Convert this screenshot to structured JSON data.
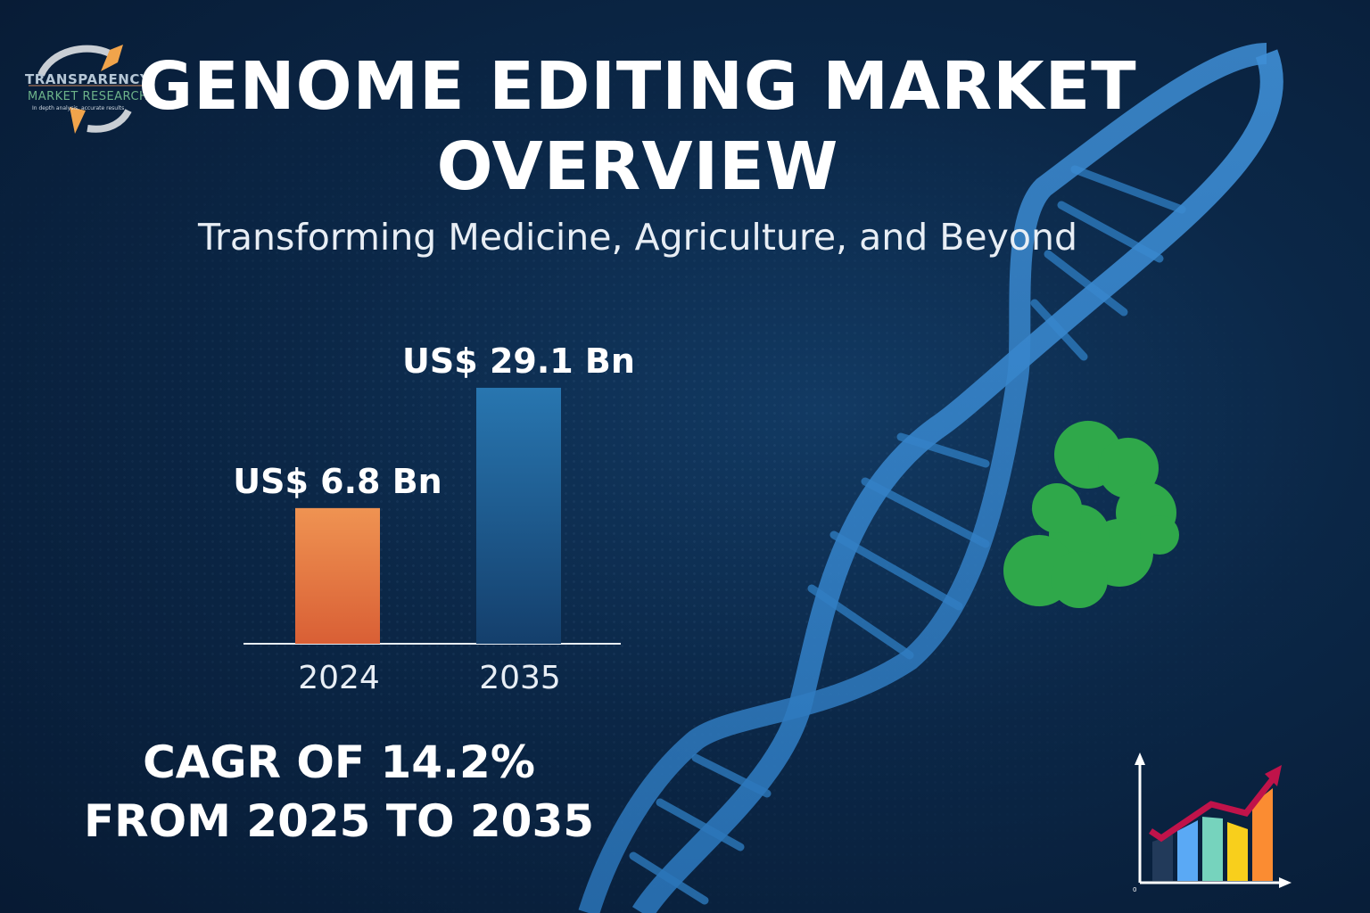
{
  "logo": {
    "name": "TRANSPARENCY",
    "line2": "MARKET RESEARCH",
    "tagline": "In depth analysis, accurate results"
  },
  "header": {
    "title": "GENOME EDITING MARKET OVERVIEW",
    "subtitle": "Transforming Medicine, Agriculture, and Beyond"
  },
  "chart_data": {
    "type": "bar",
    "categories": [
      "2024",
      "2035"
    ],
    "values": [
      6.8,
      29.1
    ],
    "data_labels": [
      "US$ 6.8 Bn",
      "US$ 29.1 Bn"
    ],
    "unit": "US$ Bn",
    "colors": [
      "#e8874a",
      "#1f5f95"
    ],
    "grid": false
  },
  "cagr": {
    "line1": "CAGR OF 14.2%",
    "line2": "FROM 2025 TO 2035"
  },
  "growth_icon": {
    "name": "growth-chart-icon",
    "zero_label": "0",
    "bar_colors": [
      "#223a5a",
      "#5aa9f5",
      "#76d3bd",
      "#f8cf1c",
      "#fb8c32"
    ],
    "arrow_color": "#c0134a"
  }
}
